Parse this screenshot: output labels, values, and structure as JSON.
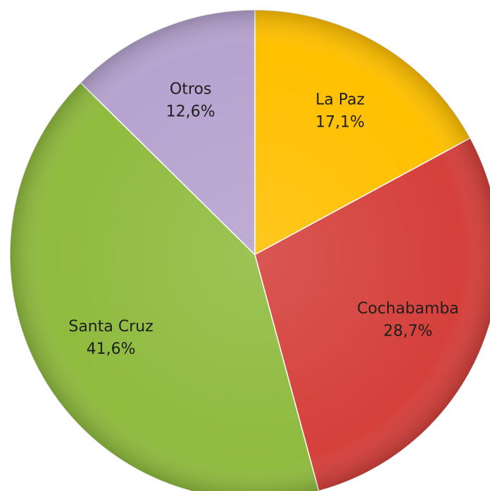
{
  "chart_data": {
    "type": "pie",
    "categories": [
      "La Paz",
      "Cochabamba",
      "Santa Cruz",
      "Otros"
    ],
    "values": [
      17.1,
      28.7,
      41.6,
      12.6
    ],
    "value_labels": [
      "17,1%",
      "28,7%",
      "41,6%",
      "12,6%"
    ],
    "colors": [
      "#ffc000",
      "#d5403b",
      "#8fbb3e",
      "#b6a2cf"
    ]
  }
}
